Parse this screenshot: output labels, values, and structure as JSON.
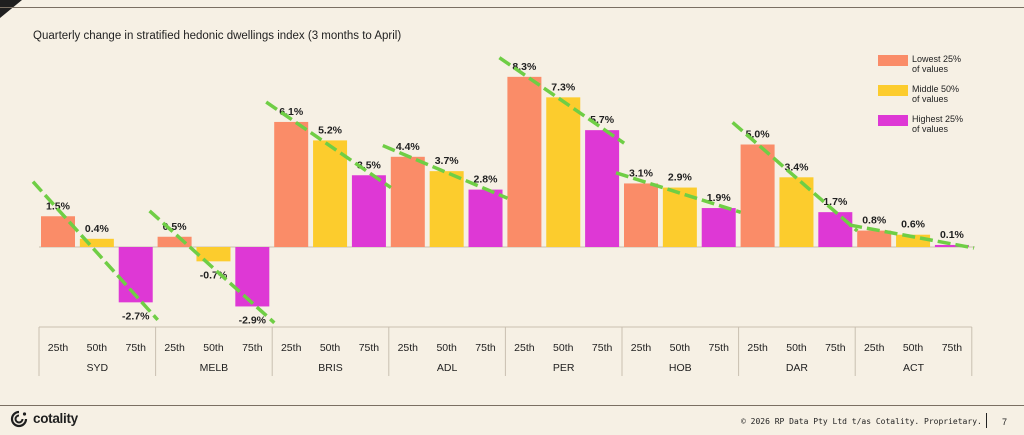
{
  "footer": {
    "copyright": "© 2026 RP Data Pty Ltd t/as Cotality. Proprietary.",
    "page_number": "7",
    "logo_text": "cotality"
  },
  "colors": {
    "background": "#f6f0e4",
    "lowest": "#fa8c68",
    "middle": "#fccc2d",
    "highest": "#de38d5",
    "trend": "#6fce45"
  },
  "chart_data": {
    "type": "bar",
    "title": "Quarterly change in stratified hedonic dwellings index (3 months to April)",
    "ylabel": "",
    "xlabel": "",
    "ylim": [
      -3.5,
      9
    ],
    "grid": false,
    "legend_position": "top-right",
    "categories": [
      "SYD",
      "MELB",
      "BRIS",
      "ADL",
      "PER",
      "HOB",
      "DAR",
      "ACT"
    ],
    "subcategories": [
      "25th",
      "50th",
      "75th"
    ],
    "series": [
      {
        "name": "Lowest 25% of values",
        "legend_line1": "Lowest 25%",
        "legend_line2": "of values",
        "color": "#fa8c68",
        "values": [
          1.5,
          0.5,
          6.1,
          4.4,
          8.3,
          3.1,
          5.0,
          0.8
        ],
        "labels": [
          "1.5%",
          "0.5%",
          "6.1%",
          "4.4%",
          "8.3%",
          "3.1%",
          "5.0%",
          "0.8%"
        ]
      },
      {
        "name": "Middle 50% of values",
        "legend_line1": "Middle 50%",
        "legend_line2": "of values",
        "color": "#fccc2d",
        "values": [
          0.4,
          -0.7,
          5.2,
          3.7,
          7.3,
          2.9,
          3.4,
          0.6
        ],
        "labels": [
          "0.4%",
          "-0.7%",
          "5.2%",
          "3.7%",
          "7.3%",
          "2.9%",
          "3.4%",
          "0.6%"
        ]
      },
      {
        "name": "Highest 25% of values",
        "legend_line1": "Highest 25%",
        "legend_line2": "of values",
        "color": "#de38d5",
        "values": [
          -2.7,
          -2.9,
          3.5,
          2.8,
          5.7,
          1.9,
          1.7,
          0.1
        ],
        "labels": [
          "-2.7%",
          "-2.9%",
          "3.5%",
          "2.8%",
          "5.7%",
          "1.9%",
          "1.7%",
          "0.1%"
        ]
      }
    ]
  }
}
